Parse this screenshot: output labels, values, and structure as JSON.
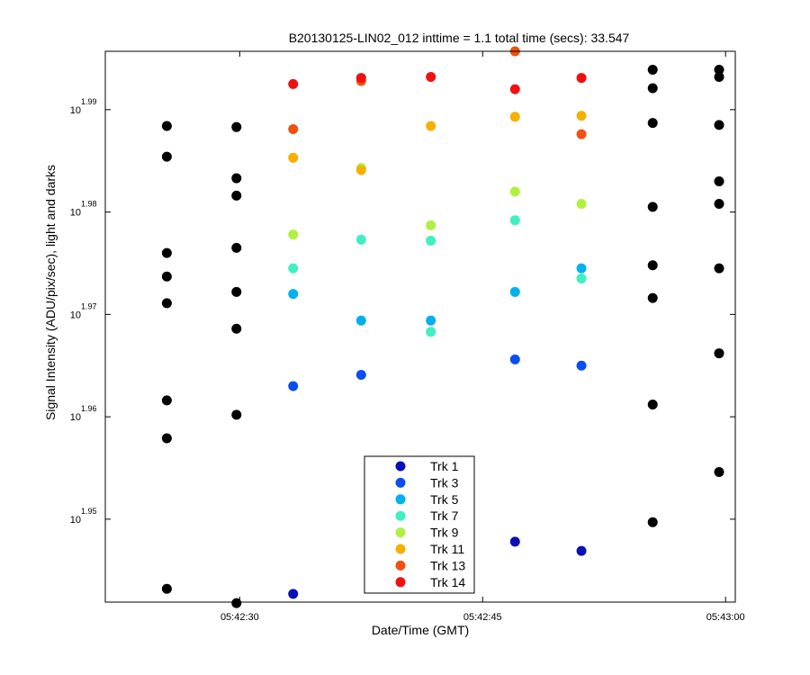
{
  "chart_data": {
    "type": "scatter",
    "title": "B20130125-LIN02_012 inttime = 1.1 total time (secs): 33.547",
    "xlabel": "Date/Time (GMT)",
    "ylabel": "Signal Intensity (ADU/pix/sec), light and darks",
    "x_unit": "seconds past 05:42:00 GMT",
    "xlim": [
      21.7,
      60.6
    ],
    "ylim": [
      1.9419,
      1.9957
    ],
    "y_scale": "log10",
    "x_ticks": [
      {
        "value": 30,
        "label": "05:42:30"
      },
      {
        "value": 45,
        "label": "05:42:45"
      },
      {
        "value": 60,
        "label": "05:43:00"
      }
    ],
    "y_ticks": [
      {
        "value": 1.95,
        "base": "10",
        "exp": "1.95"
      },
      {
        "value": 1.96,
        "base": "10",
        "exp": "1.96"
      },
      {
        "value": 1.97,
        "base": "10",
        "exp": "1.97"
      },
      {
        "value": 1.98,
        "base": "10",
        "exp": "1.98"
      },
      {
        "value": 1.99,
        "base": "10",
        "exp": "1.99"
      }
    ],
    "legend_position": "bottom-center",
    "grid": false,
    "series": [
      {
        "name": "Trk 1",
        "color": "#0a10b4",
        "points": [
          [
            33.3,
            1.9427
          ],
          [
            47.0,
            1.9478
          ],
          [
            51.1,
            1.9469
          ]
        ]
      },
      {
        "name": "Trk 3",
        "color": "#0a4df0",
        "points": [
          [
            33.3,
            1.963
          ],
          [
            37.5,
            1.9641
          ],
          [
            47.0,
            1.9656
          ],
          [
            51.1,
            1.965
          ]
        ]
      },
      {
        "name": "Trk 5",
        "color": "#00b0f0",
        "points": [
          [
            33.3,
            1.972
          ],
          [
            37.5,
            1.9694
          ],
          [
            41.8,
            1.9694
          ],
          [
            47.0,
            1.9722
          ],
          [
            51.1,
            1.9745
          ]
        ]
      },
      {
        "name": "Trk 7",
        "color": "#40f0c0",
        "points": [
          [
            33.3,
            1.9745
          ],
          [
            37.5,
            1.9773
          ],
          [
            41.8,
            1.9772
          ],
          [
            41.8,
            1.9683
          ],
          [
            47.0,
            1.9792
          ],
          [
            51.1,
            1.9735
          ]
        ]
      },
      {
        "name": "Trk 9",
        "color": "#b0f040",
        "points": [
          [
            33.3,
            1.9778
          ],
          [
            37.5,
            1.9843
          ],
          [
            41.8,
            1.9787
          ],
          [
            47.0,
            1.982
          ],
          [
            51.1,
            1.9808
          ]
        ]
      },
      {
        "name": "Trk 11",
        "color": "#f7b000",
        "points": [
          [
            33.3,
            1.9853
          ],
          [
            37.5,
            1.9841
          ],
          [
            41.8,
            1.9884
          ],
          [
            47.0,
            1.9893
          ],
          [
            51.1,
            1.9894
          ]
        ]
      },
      {
        "name": "Trk 13",
        "color": "#f05010",
        "points": [
          [
            33.3,
            1.9881
          ],
          [
            37.5,
            1.9928
          ],
          [
            47.0,
            1.9957
          ],
          [
            51.1,
            1.9876
          ]
        ]
      },
      {
        "name": "Trk 14",
        "color": "#f01010",
        "points": [
          [
            33.3,
            1.9925
          ],
          [
            37.5,
            1.9931
          ],
          [
            41.8,
            1.9932
          ],
          [
            47.0,
            1.992
          ],
          [
            51.1,
            1.9931
          ]
        ]
      }
    ],
    "darks": {
      "color": "#000000",
      "points": [
        [
          25.5,
          1.9884
        ],
        [
          25.5,
          1.9854
        ],
        [
          25.5,
          1.976
        ],
        [
          25.5,
          1.9737
        ],
        [
          25.5,
          1.9711
        ],
        [
          25.5,
          1.9616
        ],
        [
          25.5,
          1.9579
        ],
        [
          25.5,
          1.9432
        ],
        [
          29.8,
          1.9883
        ],
        [
          29.8,
          1.9833
        ],
        [
          29.8,
          1.9816
        ],
        [
          29.8,
          1.9765
        ],
        [
          29.8,
          1.9722
        ],
        [
          29.8,
          1.9686
        ],
        [
          29.8,
          1.9602
        ],
        [
          29.8,
          1.9418
        ],
        [
          55.5,
          1.9939
        ],
        [
          55.5,
          1.9921
        ],
        [
          55.5,
          1.9887
        ],
        [
          55.5,
          1.9805
        ],
        [
          55.5,
          1.9748
        ],
        [
          55.5,
          1.9716
        ],
        [
          55.5,
          1.9612
        ],
        [
          55.5,
          1.9497
        ],
        [
          59.6,
          1.9939
        ],
        [
          59.6,
          1.9932
        ],
        [
          59.6,
          1.9885
        ],
        [
          59.6,
          1.983
        ],
        [
          59.6,
          1.9808
        ],
        [
          59.6,
          1.9745
        ],
        [
          59.6,
          1.9662
        ],
        [
          59.6,
          1.9546
        ]
      ]
    }
  }
}
